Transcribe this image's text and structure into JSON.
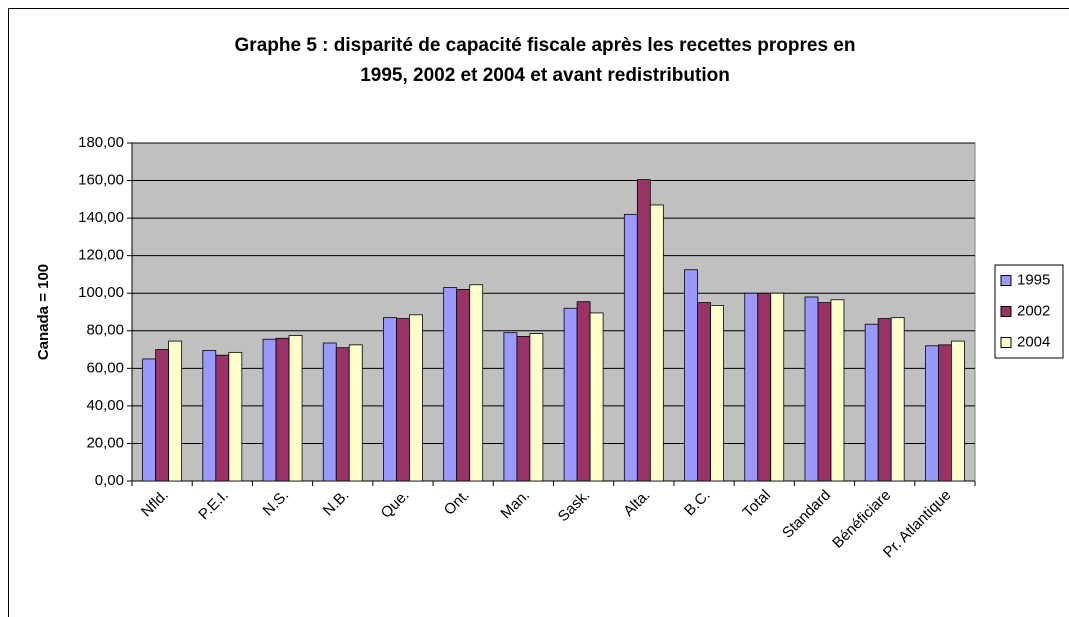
{
  "chart_data": {
    "type": "bar",
    "title": [
      "Graphe 5 : disparité de capacité fiscale après les recettes propres en",
      "1995, 2002 et 2004 et avant redistribution"
    ],
    "y_label": "Canada = 100",
    "categories": [
      "Nfld.",
      "P.E.I.",
      "N.S.",
      "N.B.",
      "Que.",
      "Ont.",
      "Man.",
      "Sask.",
      "Alta.",
      "B.C.",
      "Total",
      "Standard",
      "Bénéficiare",
      "Pr. Atlantique"
    ],
    "series": [
      {
        "name": "1995",
        "color": "#9999ff",
        "values": [
          65,
          69.5,
          75.5,
          73.5,
          87,
          103,
          79,
          92,
          142,
          112.5,
          100,
          98,
          83.5,
          72
        ]
      },
      {
        "name": "2002",
        "color": "#993366",
        "values": [
          70,
          67,
          76,
          71,
          86.5,
          102,
          77,
          95.5,
          160.5,
          95,
          100,
          95,
          86.5,
          72.5
        ]
      },
      {
        "name": "2004",
        "color": "#ffffcc",
        "values": [
          74.5,
          68.5,
          77.5,
          72.5,
          88.5,
          104.5,
          78.5,
          89.5,
          147,
          93.5,
          100,
          96.5,
          87,
          74.5
        ]
      }
    ],
    "ylim": [
      0,
      180
    ],
    "yticks": [
      {
        "value": 0,
        "label": "0,00"
      },
      {
        "value": 20,
        "label": "20,00"
      },
      {
        "value": 40,
        "label": "40,00"
      },
      {
        "value": 60,
        "label": "60,00"
      },
      {
        "value": 80,
        "label": "80,00"
      },
      {
        "value": 100,
        "label": "100,00"
      },
      {
        "value": 120,
        "label": "120,00"
      },
      {
        "value": 140,
        "label": "140,00"
      },
      {
        "value": 160,
        "label": "160,00"
      },
      {
        "value": 180,
        "label": "180,00"
      }
    ],
    "grid": true,
    "legend": "right"
  }
}
